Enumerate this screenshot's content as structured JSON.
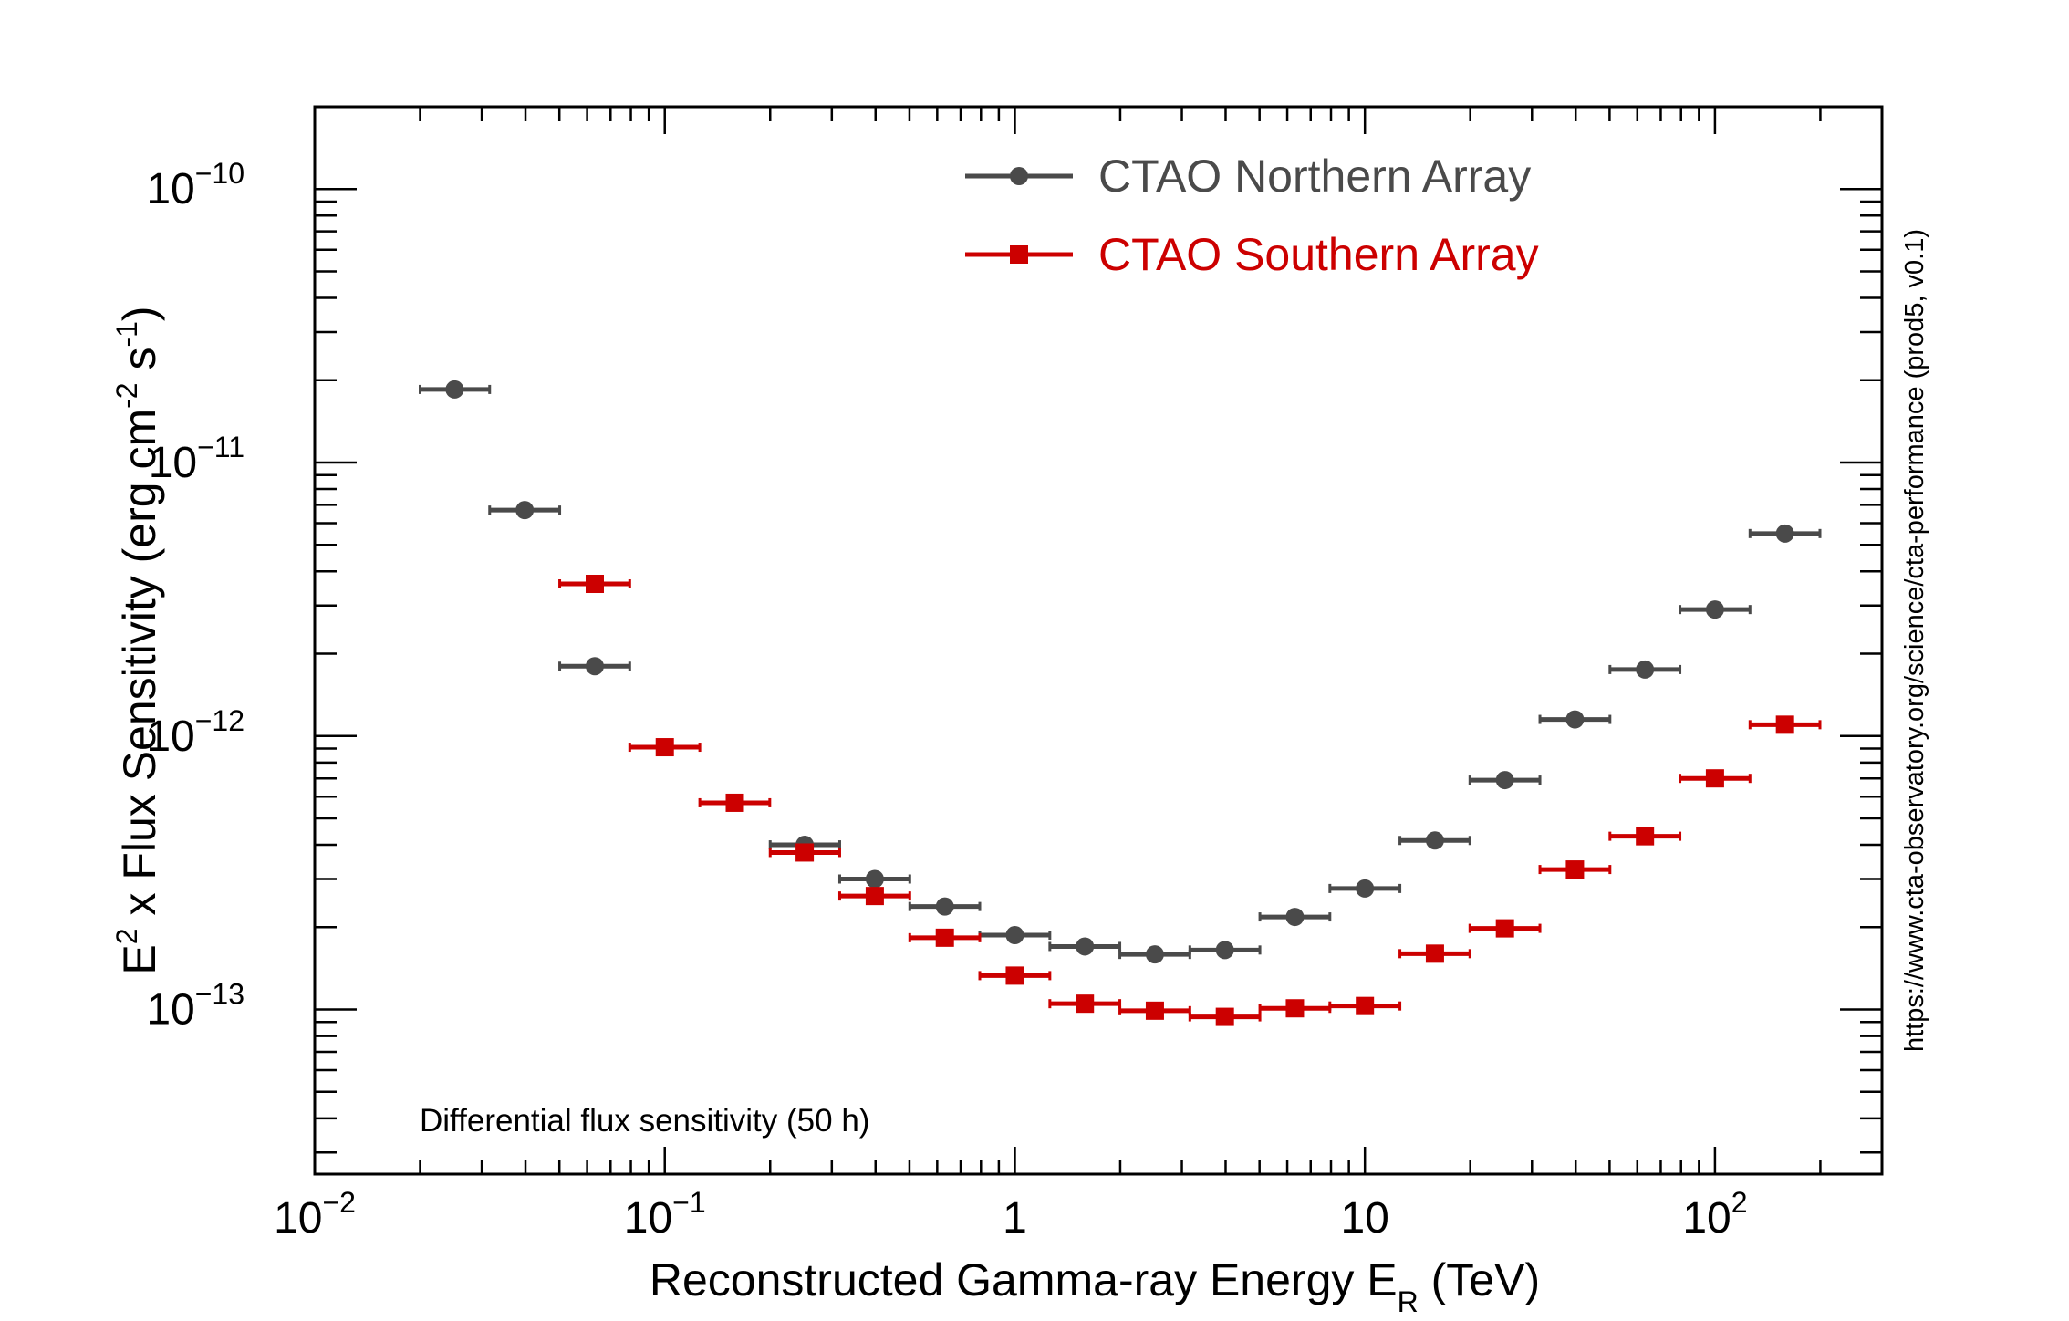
{
  "chart_data": {
    "type": "scatter",
    "title": "",
    "xlabel": "Reconstructed Gamma-ray Energy E",
    "xlabel_sub": "R",
    "xlabel_unit": "(TeV)",
    "ylabel": "E",
    "ylabel_sup": "2",
    "ylabel_rest": " x Flux Sensitivity (erg cm",
    "ylabel_sup2": "-2",
    "ylabel_rest2": " s",
    "ylabel_sup3": "-1",
    "ylabel_end": ")",
    "xscale": "log",
    "yscale": "log",
    "xlim": [
      0.01,
      300
    ],
    "ylim": [
      2.5e-14,
      2e-10
    ],
    "x_ticks": [
      {
        "value": 0.01,
        "base": "10",
        "exp": "−2"
      },
      {
        "value": 0.1,
        "base": "10",
        "exp": "−1"
      },
      {
        "value": 1,
        "base": "1",
        "exp": ""
      },
      {
        "value": 10,
        "base": "10",
        "exp": ""
      },
      {
        "value": 100,
        "base": "10",
        "exp": "2"
      }
    ],
    "y_ticks": [
      {
        "value": 1e-13,
        "base": "10",
        "exp": "−13"
      },
      {
        "value": 1e-12,
        "base": "10",
        "exp": "−12"
      },
      {
        "value": 1e-11,
        "base": "10",
        "exp": "−11"
      },
      {
        "value": 1e-10,
        "base": "10",
        "exp": "−10"
      }
    ],
    "legend_position": "top-center",
    "annotation": "Differential flux sensitivity (50 h)",
    "side_note": "https://www.cta-observatory.org/science/cta-performance (prod5, v0.1)",
    "series": [
      {
        "name": "CTAO Northern Array",
        "color": "#4a4a4a",
        "marker": "circle",
        "points": [
          {
            "x": 0.0251,
            "y": 1.85e-11,
            "xlo": 0.02,
            "xhi": 0.0316
          },
          {
            "x": 0.0398,
            "y": 6.7e-12,
            "xlo": 0.0316,
            "xhi": 0.0501
          },
          {
            "x": 0.0631,
            "y": 1.8e-12,
            "xlo": 0.0501,
            "xhi": 0.0794
          },
          {
            "x": 0.251,
            "y": 4e-13,
            "xlo": 0.2,
            "xhi": 0.316
          },
          {
            "x": 0.398,
            "y": 3e-13,
            "xlo": 0.316,
            "xhi": 0.501
          },
          {
            "x": 0.631,
            "y": 2.38e-13,
            "xlo": 0.501,
            "xhi": 0.794
          },
          {
            "x": 1.0,
            "y": 1.87e-13,
            "xlo": 0.794,
            "xhi": 1.259
          },
          {
            "x": 1.585,
            "y": 1.7e-13,
            "xlo": 1.259,
            "xhi": 1.995
          },
          {
            "x": 2.512,
            "y": 1.59e-13,
            "xlo": 1.995,
            "xhi": 3.162
          },
          {
            "x": 3.981,
            "y": 1.65e-13,
            "xlo": 3.162,
            "xhi": 5.012
          },
          {
            "x": 6.31,
            "y": 2.18e-13,
            "xlo": 5.012,
            "xhi": 7.943
          },
          {
            "x": 10.0,
            "y": 2.77e-13,
            "xlo": 7.943,
            "xhi": 12.59
          },
          {
            "x": 15.85,
            "y": 4.15e-13,
            "xlo": 12.59,
            "xhi": 19.95
          },
          {
            "x": 25.12,
            "y": 6.9e-13,
            "xlo": 19.95,
            "xhi": 31.62
          },
          {
            "x": 39.81,
            "y": 1.15e-12,
            "xlo": 31.62,
            "xhi": 50.12
          },
          {
            "x": 63.1,
            "y": 1.75e-12,
            "xlo": 50.12,
            "xhi": 79.43
          },
          {
            "x": 100.0,
            "y": 2.9e-12,
            "xlo": 79.43,
            "xhi": 125.9
          },
          {
            "x": 158.5,
            "y": 5.5e-12,
            "xlo": 125.9,
            "xhi": 199.5
          }
        ]
      },
      {
        "name": "CTAO Southern Array",
        "color": "#cc0000",
        "marker": "square",
        "points": [
          {
            "x": 0.0631,
            "y": 3.6e-12,
            "xlo": 0.0501,
            "xhi": 0.0794
          },
          {
            "x": 0.1,
            "y": 9.1e-13,
            "xlo": 0.0794,
            "xhi": 0.1259
          },
          {
            "x": 0.1585,
            "y": 5.7e-13,
            "xlo": 0.1259,
            "xhi": 0.1995
          },
          {
            "x": 0.251,
            "y": 3.75e-13,
            "xlo": 0.2,
            "xhi": 0.316
          },
          {
            "x": 0.398,
            "y": 2.6e-13,
            "xlo": 0.316,
            "xhi": 0.501
          },
          {
            "x": 0.631,
            "y": 1.83e-13,
            "xlo": 0.501,
            "xhi": 0.794
          },
          {
            "x": 1.0,
            "y": 1.33e-13,
            "xlo": 0.794,
            "xhi": 1.259
          },
          {
            "x": 1.585,
            "y": 1.05e-13,
            "xlo": 1.259,
            "xhi": 1.995
          },
          {
            "x": 2.512,
            "y": 9.9e-14,
            "xlo": 1.995,
            "xhi": 3.162
          },
          {
            "x": 3.981,
            "y": 9.4e-14,
            "xlo": 3.162,
            "xhi": 5.012
          },
          {
            "x": 6.31,
            "y": 1.01e-13,
            "xlo": 5.012,
            "xhi": 7.943
          },
          {
            "x": 10.0,
            "y": 1.03e-13,
            "xlo": 7.943,
            "xhi": 12.59
          },
          {
            "x": 15.85,
            "y": 1.6e-13,
            "xlo": 12.59,
            "xhi": 19.95
          },
          {
            "x": 25.12,
            "y": 1.98e-13,
            "xlo": 19.95,
            "xhi": 31.62
          },
          {
            "x": 39.81,
            "y": 3.25e-13,
            "xlo": 31.62,
            "xhi": 50.12
          },
          {
            "x": 63.1,
            "y": 4.3e-13,
            "xlo": 50.12,
            "xhi": 79.43
          },
          {
            "x": 100.0,
            "y": 7e-13,
            "xlo": 79.43,
            "xhi": 125.9
          },
          {
            "x": 158.5,
            "y": 1.1e-12,
            "xlo": 125.9,
            "xhi": 199.5
          }
        ]
      }
    ]
  }
}
